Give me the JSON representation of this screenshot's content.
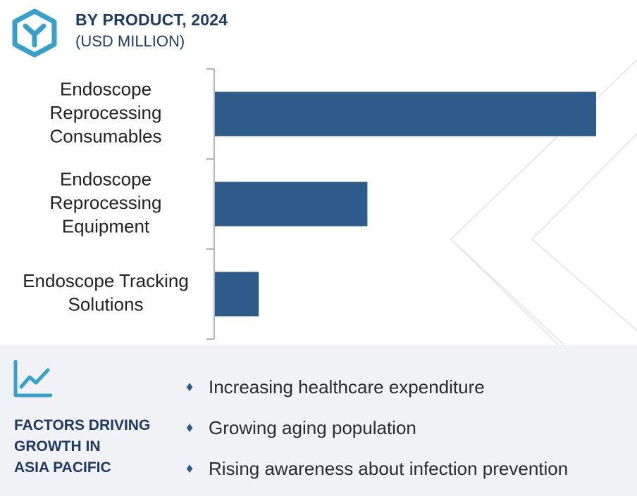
{
  "header": {
    "title": "BY PRODUCT, 2024",
    "subtitle": "(USD MILLION)"
  },
  "colors": {
    "bar": "#2e5c8a",
    "heading": "#1f3a63",
    "panel": "#f1f2f6",
    "accent": "#3aa0c8"
  },
  "icons": {
    "logo": "hexagon-y-logo-icon",
    "trend": "line-chart-trend-icon",
    "bullet": "diamond-bullet-icon"
  },
  "chart_data": {
    "type": "bar",
    "orientation": "horizontal",
    "categories": [
      [
        "Endoscope",
        "Reprocessing",
        "Consumables"
      ],
      [
        "Endoscope",
        "Reprocessing",
        "Equipment"
      ],
      [
        "Endoscope Tracking",
        "Solutions"
      ]
    ],
    "values": [
      100,
      40,
      11.5
    ],
    "xlim": [
      0,
      100
    ],
    "grid": false,
    "legend": "none"
  },
  "factors": {
    "heading_lines": [
      "FACTORS DRIVING",
      "GROWTH IN",
      "ASIA PACIFIC"
    ],
    "bullet_glyph": "♦",
    "items": [
      "Increasing healthcare expenditure",
      "Growing aging population",
      "Rising awareness about infection prevention"
    ]
  }
}
